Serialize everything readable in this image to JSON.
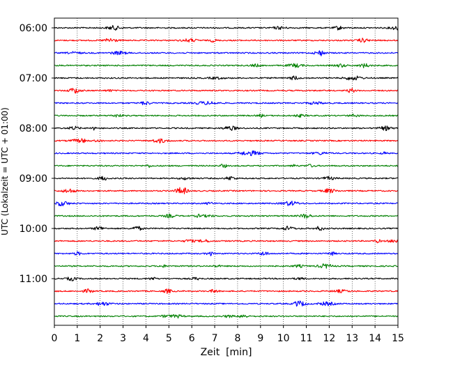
{
  "chart_data": {
    "type": "line",
    "xlabel": "Zeit  [min]",
    "ylabel": "UTC (Lokalzeit = UTC + 01:00)",
    "xlim": [
      0,
      15
    ],
    "x_ticks": [
      "0",
      "1",
      "2",
      "3",
      "4",
      "5",
      "6",
      "7",
      "8",
      "9",
      "10",
      "11",
      "12",
      "13",
      "14",
      "15"
    ],
    "y_ticks": [
      "06:00",
      "07:00",
      "08:00",
      "09:00",
      "10:00",
      "11:00"
    ],
    "grid": "vertical dotted",
    "trace_interval_minutes": 15,
    "traces": [
      {
        "start": "06:00",
        "color": "#000000"
      },
      {
        "start": "06:15",
        "color": "#ff0000"
      },
      {
        "start": "06:30",
        "color": "#0000ff"
      },
      {
        "start": "06:45",
        "color": "#008000"
      },
      {
        "start": "07:00",
        "color": "#000000"
      },
      {
        "start": "07:15",
        "color": "#ff0000"
      },
      {
        "start": "07:30",
        "color": "#0000ff"
      },
      {
        "start": "07:45",
        "color": "#008000"
      },
      {
        "start": "08:00",
        "color": "#000000"
      },
      {
        "start": "08:15",
        "color": "#ff0000"
      },
      {
        "start": "08:30",
        "color": "#0000ff"
      },
      {
        "start": "08:45",
        "color": "#008000"
      },
      {
        "start": "09:00",
        "color": "#000000"
      },
      {
        "start": "09:15",
        "color": "#ff0000"
      },
      {
        "start": "09:30",
        "color": "#0000ff"
      },
      {
        "start": "09:45",
        "color": "#008000"
      },
      {
        "start": "10:00",
        "color": "#000000"
      },
      {
        "start": "10:15",
        "color": "#ff0000"
      },
      {
        "start": "10:30",
        "color": "#0000ff"
      },
      {
        "start": "10:45",
        "color": "#008000"
      },
      {
        "start": "11:00",
        "color": "#000000"
      },
      {
        "start": "11:15",
        "color": "#ff0000"
      },
      {
        "start": "11:30",
        "color": "#0000ff"
      },
      {
        "start": "11:45",
        "color": "#008000"
      }
    ]
  }
}
